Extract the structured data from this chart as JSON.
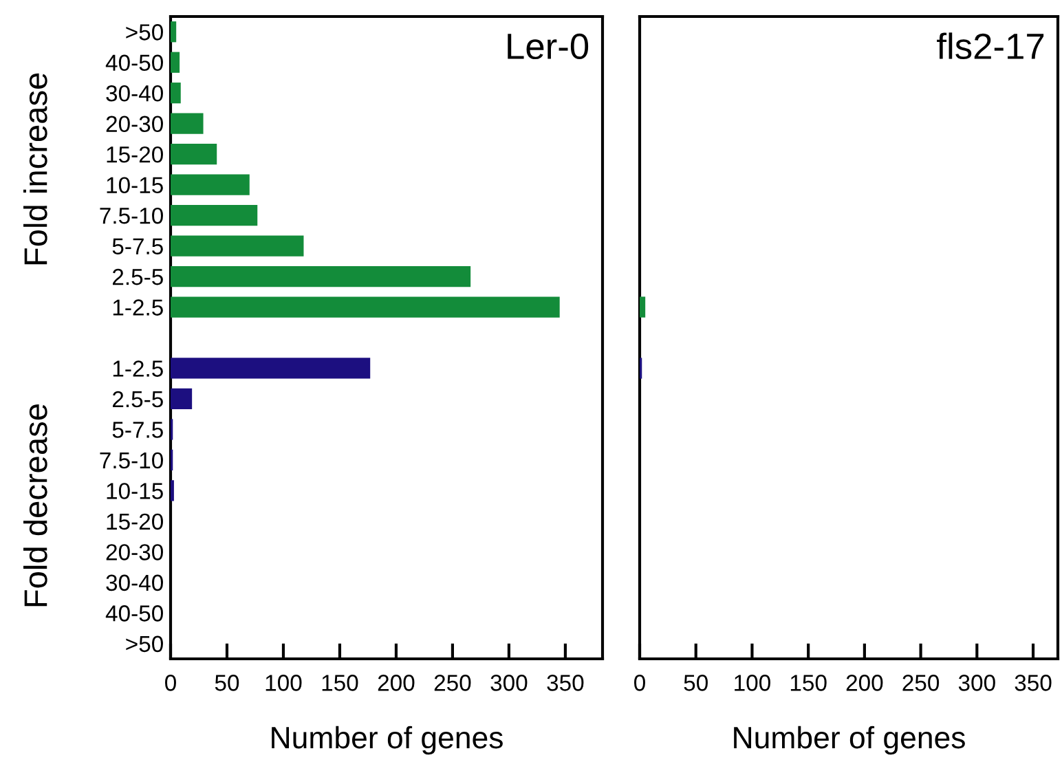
{
  "chart_data": [
    {
      "type": "bar",
      "orientation": "horizontal",
      "title": "Ler-0",
      "xlabel": "Number of genes",
      "categories": [
        ">50",
        "40-50",
        "30-40",
        "20-30",
        "15-20",
        "10-15",
        "7.5-10",
        "5-7.5",
        "2.5-5",
        "1-2.5",
        null,
        "1-2.5",
        "2.5-5",
        "5-7.5",
        "7.5-10",
        "10-15",
        "15-20",
        "20-30",
        "30-40",
        "40-50",
        ">50"
      ],
      "series": [
        {
          "color": "#138c3a",
          "values": [
            5,
            8,
            9,
            29,
            41,
            70,
            77,
            118,
            266,
            345,
            null,
            null,
            null,
            null,
            null,
            null,
            null,
            null,
            null,
            null,
            null
          ]
        },
        {
          "color": "#1c0f80",
          "values": [
            null,
            null,
            null,
            null,
            null,
            null,
            null,
            null,
            null,
            null,
            null,
            177,
            19,
            2,
            2,
            3,
            0,
            0,
            0,
            0,
            0
          ]
        }
      ],
      "xlim": [
        0,
        383
      ],
      "xticks": [
        0,
        50,
        100,
        150,
        200,
        250,
        300,
        350
      ],
      "annotations": [
        "Fold increase",
        "Fold decrease"
      ]
    },
    {
      "type": "bar",
      "orientation": "horizontal",
      "title": "fls2-17",
      "xlabel": "Number of genes",
      "categories": [
        null,
        null,
        null,
        null,
        null,
        null,
        null,
        null,
        null,
        null,
        null,
        null,
        null,
        null,
        null,
        null,
        null,
        null,
        null,
        null,
        null
      ],
      "series": [
        {
          "color": "#138c3a",
          "values": [
            null,
            null,
            null,
            null,
            null,
            null,
            null,
            null,
            null,
            5,
            null,
            null,
            null,
            null,
            null,
            null,
            null,
            null,
            null,
            null,
            null
          ]
        },
        {
          "color": "#1c0f80",
          "values": [
            null,
            null,
            null,
            null,
            null,
            null,
            null,
            null,
            null,
            null,
            null,
            2,
            null,
            null,
            null,
            null,
            null,
            null,
            null,
            null,
            null
          ]
        }
      ],
      "xlim": [
        0,
        372
      ],
      "xticks": [
        0,
        50,
        100,
        150,
        200,
        250,
        300,
        350
      ],
      "tick_labels": "x"
    }
  ]
}
